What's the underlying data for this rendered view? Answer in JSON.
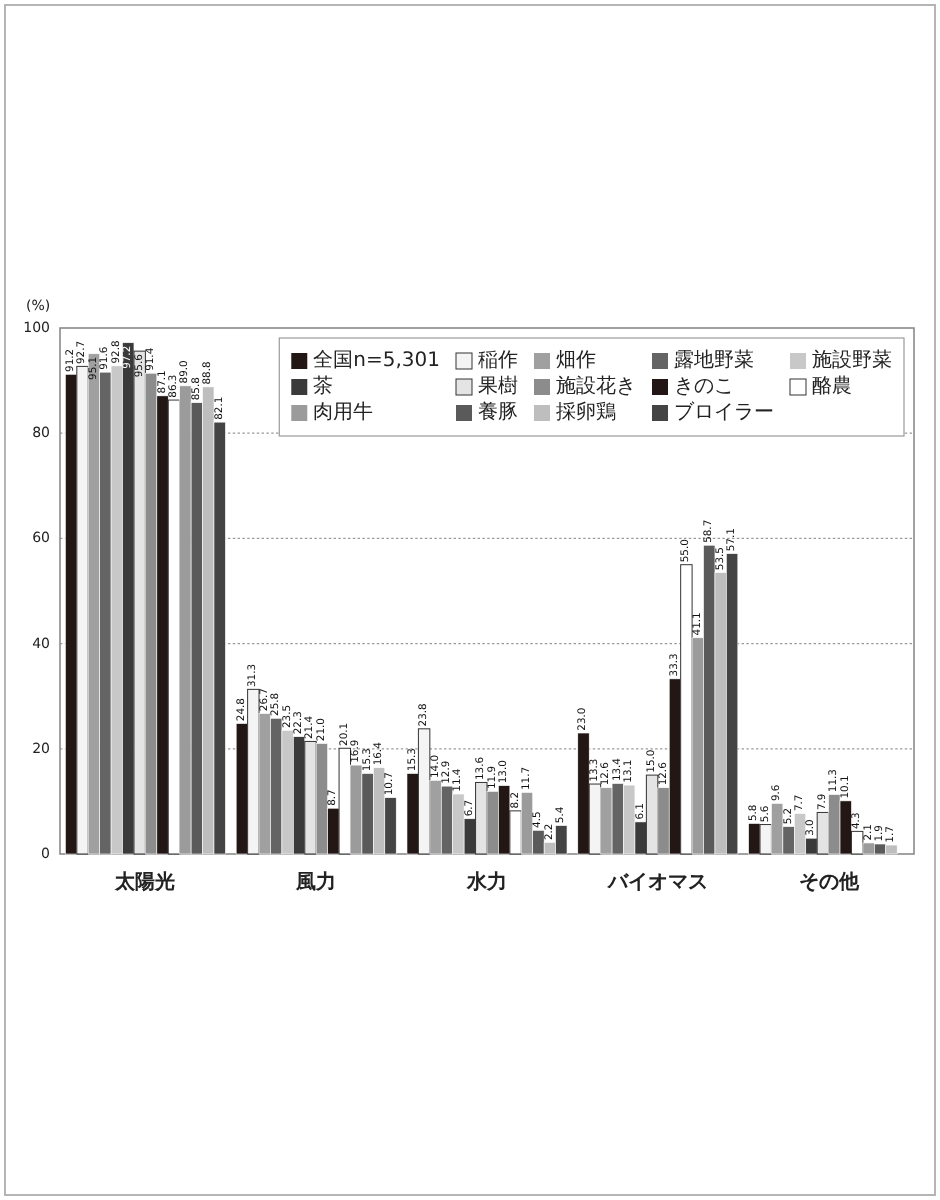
{
  "chart_data": {
    "type": "bar",
    "ylabel": "(%)",
    "categories": [
      "太陽光",
      "風力",
      "水力",
      "バイオマス",
      "その他"
    ],
    "series": [
      {
        "name": "全国n=5,301",
        "color": "#221714",
        "values": [
          91.2,
          24.8,
          15.3,
          23.0,
          5.8
        ],
        "value_labels": [
          "91.2",
          "24.8",
          "15.3",
          "23.0",
          "5.8"
        ]
      },
      {
        "name": "稲作",
        "color": "#f4f4f4",
        "values": [
          92.7,
          31.3,
          23.8,
          13.3,
          5.6
        ],
        "value_labels": [
          "92.7",
          "31.3",
          "23.8",
          "13.3",
          "5.6"
        ]
      },
      {
        "name": "畑作",
        "color": "#a0a0a0",
        "values": [
          95.1,
          26.7,
          14.0,
          12.6,
          9.6
        ],
        "value_labels": [
          "95.1",
          "26.7",
          "14.0",
          "12.6",
          "9.6"
        ]
      },
      {
        "name": "露地野菜",
        "color": "#646464",
        "values": [
          91.6,
          25.8,
          12.9,
          13.4,
          5.2
        ],
        "value_labels": [
          "91.6",
          "25.8",
          "12.9",
          "13.4",
          "5.2"
        ]
      },
      {
        "name": "施設野菜",
        "color": "#c8c8c8",
        "values": [
          92.8,
          23.5,
          11.4,
          13.1,
          7.7
        ],
        "value_labels": [
          "92.8",
          "23.5",
          "11.4",
          "13.1",
          "7.7"
        ]
      },
      {
        "name": "茶",
        "color": "#3a3a3a",
        "values": [
          97.2,
          22.3,
          6.7,
          6.1,
          3.0
        ],
        "value_labels": [
          "97.2",
          "22.3",
          "6.7",
          "6.1",
          "3.0"
        ]
      },
      {
        "name": "果樹",
        "color": "#e4e4e4",
        "values": [
          95.6,
          21.4,
          13.6,
          15.0,
          7.9
        ],
        "value_labels": [
          "95.6",
          "21.4",
          "13.6",
          "15.0",
          "7.9"
        ]
      },
      {
        "name": "施設花き",
        "color": "#8c8c8c",
        "values": [
          91.4,
          21.0,
          11.9,
          12.6,
          11.3
        ],
        "value_labels": [
          "91.4",
          "21.0",
          "11.9",
          "12.6",
          "11.3"
        ]
      },
      {
        "name": "きのこ",
        "color": "#221714",
        "values": [
          87.1,
          8.7,
          13.0,
          33.3,
          10.1
        ],
        "value_labels": [
          "87.1",
          "8.7",
          "13.0",
          "33.3",
          "10.1"
        ]
      },
      {
        "name": "酪農",
        "color": "#ffffff",
        "values": [
          86.3,
          20.1,
          8.2,
          55.0,
          4.3
        ],
        "value_labels": [
          "86.3",
          "20.1",
          "8.2",
          "55.0",
          "4.3"
        ]
      },
      {
        "name": "肉用牛",
        "color": "#9b9b9b",
        "values": [
          89.0,
          16.9,
          11.7,
          41.1,
          2.1
        ],
        "value_labels": [
          "89.0",
          "16.9",
          "11.7",
          "41.1",
          "2.1"
        ]
      },
      {
        "name": "養豚",
        "color": "#5a5a5a",
        "values": [
          85.8,
          15.3,
          4.5,
          58.7,
          1.9
        ],
        "value_labels": [
          "85.8",
          "15.3",
          "4.5",
          "58.7",
          "1.9"
        ]
      },
      {
        "name": "採卵鶏",
        "color": "#bebebe",
        "values": [
          88.8,
          16.4,
          2.2,
          53.5,
          1.7
        ],
        "value_labels": [
          "88.8",
          "16.4",
          "2.2",
          "53.5",
          "1.7"
        ]
      },
      {
        "name": "ブロイラー",
        "color": "#444444",
        "values": [
          82.1,
          10.7,
          5.4,
          57.1,
          null
        ],
        "value_labels": [
          "82.1",
          "10.7",
          "5.4",
          "57.1",
          null
        ]
      }
    ],
    "ylim": [
      0,
      100
    ],
    "yticks": [
      0,
      20,
      40,
      60,
      80,
      100
    ],
    "grid": "y",
    "legend": "top right"
  }
}
